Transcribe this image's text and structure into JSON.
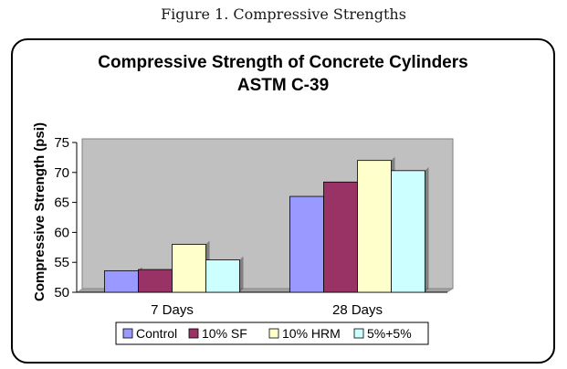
{
  "figure_caption": "Figure 1. Compressive Strengths",
  "chart_data": {
    "type": "bar",
    "title": "Compressive Strength of Concrete Cylinders",
    "subtitle": "ASTM C-39",
    "xlabel": "",
    "ylabel": "Compressive Strength (psi)",
    "ylim": [
      50,
      75
    ],
    "yticks": [
      50,
      55,
      60,
      65,
      70,
      75
    ],
    "categories": [
      "7 Days",
      "28 Days"
    ],
    "series": [
      {
        "name": "Control",
        "values": [
          53.6,
          66.0
        ],
        "color": "#9999ff"
      },
      {
        "name": "10% SF",
        "values": [
          53.8,
          68.4
        ],
        "color": "#993366"
      },
      {
        "name": "10% HRM",
        "values": [
          58.0,
          72.0
        ],
        "color": "#ffffcc"
      },
      {
        "name": "5%+5%",
        "values": [
          55.4,
          70.3
        ],
        "color": "#ccffff"
      }
    ],
    "plot_background": "#c0c0c0",
    "grid": false,
    "legend_position": "bottom"
  }
}
